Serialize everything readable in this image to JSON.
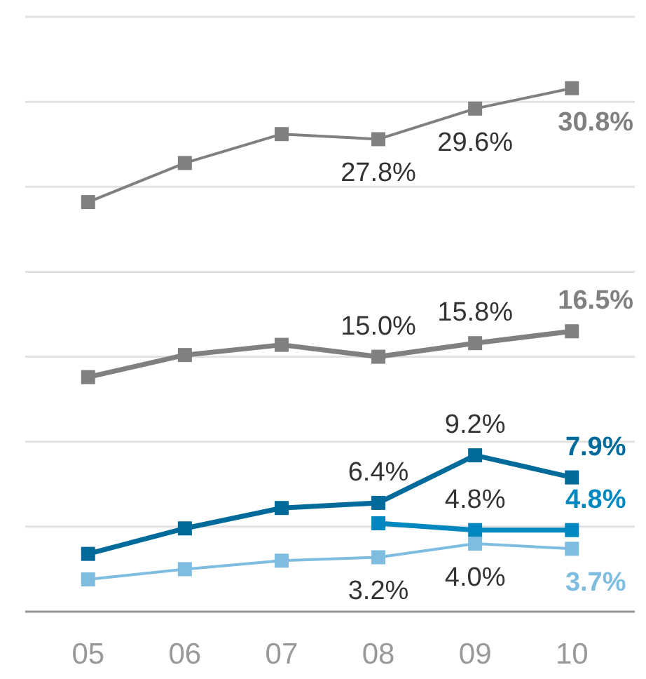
{
  "chart_data": {
    "type": "line",
    "categories": [
      "05",
      "06",
      "07",
      "08",
      "09",
      "10"
    ],
    "series": [
      {
        "color": "#808080",
        "values": [
          24.1,
          26.4,
          28.1,
          27.8,
          29.6,
          30.8
        ],
        "value_labels": [
          null,
          null,
          null,
          "27.8%",
          "29.6%",
          "30.8%"
        ]
      },
      {
        "color": "#808080",
        "values": [
          13.8,
          15.1,
          15.7,
          15.0,
          15.8,
          16.5
        ],
        "value_labels": [
          null,
          null,
          null,
          "15.0%",
          "15.8%",
          "16.5%"
        ]
      },
      {
        "color": "#006a9a",
        "values": [
          3.4,
          4.9,
          6.1,
          6.4,
          9.2,
          7.9
        ],
        "value_labels": [
          null,
          null,
          null,
          "6.4%",
          "9.2%",
          "7.9%"
        ]
      },
      {
        "color": "#0087c0",
        "values": [
          null,
          null,
          null,
          5.2,
          4.8,
          4.8
        ],
        "value_labels": [
          null,
          null,
          null,
          null,
          "4.8%",
          "4.8%"
        ]
      },
      {
        "color": "#7fbde0",
        "values": [
          1.9,
          2.5,
          3.0,
          3.2,
          4.0,
          3.7
        ],
        "value_labels": [
          null,
          null,
          null,
          "3.2%",
          "4.0%",
          "3.7%"
        ]
      }
    ],
    "ylim": [
      0,
      35
    ],
    "yticks": [
      {
        "value": 0,
        "label": null
      },
      {
        "value": 5,
        "label": null
      },
      {
        "value": 10,
        "label": null
      },
      {
        "value": 15,
        "label": null
      },
      {
        "value": 20,
        "label": null
      },
      {
        "value": 25,
        "label": null
      },
      {
        "value": 30,
        "label": null
      },
      {
        "value": 35,
        "label": null
      }
    ],
    "grid": "y",
    "tick_labels": "x",
    "marker": "square"
  }
}
